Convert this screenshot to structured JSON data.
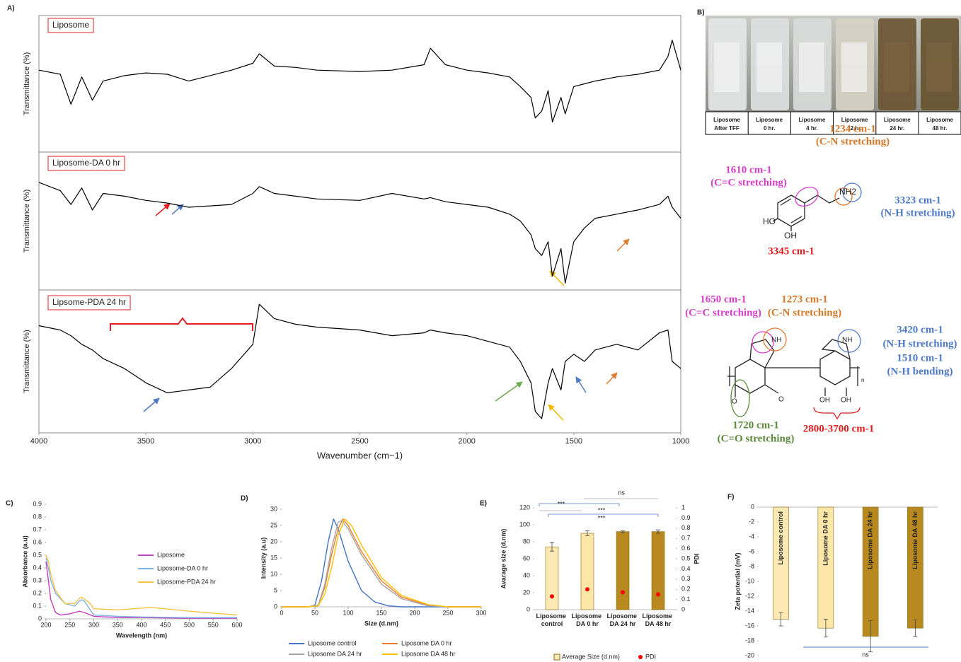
{
  "chart_data": [
    {
      "panel": "A)",
      "type": "line",
      "annotation": "Liposome",
      "ylabel": "Transmittance (%)",
      "xlim": [
        4000,
        1000
      ],
      "ylim": [
        0,
        100
      ],
      "x": [
        4000,
        3900,
        3850,
        3800,
        3750,
        3700,
        3600,
        3500,
        3400,
        3300,
        3200,
        3100,
        3000,
        2970,
        2900,
        2800,
        2700,
        2500,
        2350,
        2200,
        2170,
        2100,
        2000,
        1900,
        1800,
        1750,
        1700,
        1680,
        1650,
        1620,
        1600,
        1560,
        1540,
        1500,
        1450,
        1400,
        1300,
        1200,
        1100,
        1060,
        1040,
        1000
      ],
      "series": [
        {
          "color": "#000000",
          "values": [
            60,
            57,
            35,
            55,
            38,
            52,
            56,
            58,
            57,
            52,
            56,
            60,
            65,
            72,
            63,
            62,
            60,
            59,
            60,
            64,
            76,
            64,
            60,
            58,
            55,
            48,
            40,
            25,
            30,
            45,
            22,
            40,
            28,
            48,
            50,
            52,
            55,
            57,
            60,
            70,
            82,
            60
          ]
        }
      ]
    },
    {
      "type": "line",
      "annotation": "Liposome-DA 0 hr",
      "ylabel": "Transmittance (%)",
      "xlim": [
        4000,
        1000
      ],
      "ylim": [
        0,
        100
      ],
      "x": [
        4000,
        3900,
        3850,
        3800,
        3750,
        3700,
        3600,
        3500,
        3400,
        3300,
        3200,
        3100,
        3000,
        2970,
        2900,
        2800,
        2700,
        2500,
        2350,
        2200,
        2170,
        2100,
        2000,
        1900,
        1800,
        1750,
        1700,
        1680,
        1650,
        1620,
        1600,
        1560,
        1540,
        1500,
        1450,
        1400,
        1300,
        1200,
        1100,
        1060,
        1040,
        1000
      ],
      "series": [
        {
          "color": "#000000",
          "values": [
            78,
            72,
            62,
            74,
            58,
            70,
            68,
            65,
            63,
            60,
            61,
            62,
            70,
            75,
            70,
            68,
            66,
            65,
            70,
            66,
            67,
            64,
            62,
            60,
            55,
            50,
            40,
            30,
            25,
            35,
            10,
            30,
            5,
            35,
            45,
            52,
            55,
            58,
            62,
            68,
            60,
            52
          ]
        }
      ]
    },
    {
      "type": "line",
      "annotation": "Lipsome-PDA 24 hr",
      "ylabel": "Transmittance (%)",
      "xlabel": "Wavenumber (cm−1)",
      "xlim": [
        4000,
        1000
      ],
      "ylim": [
        0,
        100
      ],
      "xticks": [
        4000,
        3500,
        3000,
        2500,
        2000,
        1500,
        1000
      ],
      "x": [
        4000,
        3900,
        3850,
        3800,
        3750,
        3700,
        3600,
        3500,
        3400,
        3300,
        3200,
        3100,
        3000,
        2970,
        2900,
        2800,
        2700,
        2500,
        2350,
        2200,
        2170,
        2100,
        2000,
        1900,
        1800,
        1750,
        1700,
        1680,
        1650,
        1620,
        1600,
        1560,
        1540,
        1500,
        1450,
        1400,
        1300,
        1200,
        1100,
        1060,
        1040,
        1000
      ],
      "series": [
        {
          "color": "#000000",
          "values": [
            75,
            72,
            68,
            62,
            58,
            52,
            45,
            35,
            28,
            30,
            32,
            45,
            62,
            90,
            80,
            76,
            74,
            72,
            68,
            70,
            72,
            70,
            68,
            64,
            60,
            50,
            35,
            15,
            10,
            35,
            45,
            30,
            50,
            55,
            50,
            58,
            62,
            58,
            70,
            72,
            50,
            45
          ]
        }
      ]
    },
    {
      "panel": "C)",
      "type": "line",
      "xlabel": "Wavelength (nm)",
      "ylabel": "Absorbance (a.u)",
      "xlim": [
        200,
        600
      ],
      "xticks": [
        200,
        250,
        300,
        350,
        400,
        450,
        500,
        550,
        600
      ],
      "ylim": [
        0,
        0.9
      ],
      "yticks": [
        0,
        0.1,
        0.2,
        0.3,
        0.4,
        0.5,
        0.6,
        0.7,
        0.8,
        0.9
      ],
      "legend": "right",
      "series": [
        {
          "name": "Liposome",
          "color": "#c040c0",
          "x": [
            200,
            205,
            210,
            220,
            230,
            250,
            270,
            280,
            300,
            350,
            400,
            500,
            600
          ],
          "values": [
            0.45,
            0.3,
            0.15,
            0.05,
            0.03,
            0.04,
            0.06,
            0.05,
            0.02,
            0.01,
            0.01,
            0.005,
            0.005
          ]
        },
        {
          "name": "Liposome-DA  0 hr",
          "color": "#7fb2e5",
          "x": [
            200,
            205,
            210,
            220,
            240,
            260,
            270,
            275,
            280,
            300,
            350,
            400,
            500,
            600
          ],
          "values": [
            0.48,
            0.4,
            0.3,
            0.2,
            0.12,
            0.1,
            0.14,
            0.15,
            0.14,
            0.03,
            0.02,
            0.015,
            0.01,
            0.01
          ]
        },
        {
          "name": "Liposome-PDA 24 hr",
          "color": "#f5c242",
          "x": [
            200,
            205,
            210,
            220,
            240,
            260,
            270,
            275,
            290,
            300,
            350,
            420,
            500,
            600
          ],
          "values": [
            0.5,
            0.45,
            0.35,
            0.22,
            0.12,
            0.12,
            0.16,
            0.17,
            0.13,
            0.08,
            0.07,
            0.09,
            0.06,
            0.03
          ]
        }
      ]
    },
    {
      "panel": "D)",
      "type": "line",
      "xlabel": "Size (d.nm)",
      "ylabel": "Intensity (a.u)",
      "xlim": [
        0,
        300
      ],
      "xticks": [
        0,
        50,
        100,
        150,
        200,
        250,
        300
      ],
      "ylim": [
        0,
        30
      ],
      "yticks": [
        0,
        5,
        10,
        15,
        20,
        25,
        30
      ],
      "legend": "bottom",
      "series": [
        {
          "name": "Liposome control",
          "color": "#4472c4",
          "x": [
            0,
            40,
            50,
            60,
            70,
            78,
            85,
            100,
            120,
            140,
            160,
            180,
            300
          ],
          "values": [
            0,
            0,
            0.5,
            8,
            20,
            27,
            24,
            14,
            5,
            1.5,
            0.3,
            0,
            0
          ]
        },
        {
          "name": "Liposome DA  0  hr",
          "color": "#ed7d31",
          "x": [
            0,
            40,
            55,
            65,
            75,
            85,
            92,
            100,
            120,
            150,
            180,
            220,
            250,
            300
          ],
          "values": [
            0,
            0,
            0.5,
            6,
            16,
            24,
            27,
            25,
            17,
            8,
            3,
            0.5,
            0,
            0
          ]
        },
        {
          "name": "Liposome DA 24  hr",
          "color": "#a5a5a5",
          "x": [
            0,
            40,
            55,
            65,
            75,
            85,
            90,
            100,
            120,
            150,
            180,
            220,
            250,
            300
          ],
          "values": [
            0,
            0,
            0.5,
            7,
            18,
            26,
            26.5,
            24,
            16,
            7,
            2.5,
            0.3,
            0,
            0
          ]
        },
        {
          "name": "Liposome DA 48  hr",
          "color": "#ffc000",
          "x": [
            0,
            40,
            55,
            65,
            75,
            85,
            95,
            105,
            120,
            150,
            180,
            220,
            250,
            300
          ],
          "values": [
            0,
            0,
            0.3,
            4,
            12,
            22,
            27,
            25,
            19,
            9,
            3.5,
            0.7,
            0,
            0
          ]
        }
      ]
    },
    {
      "panel": "E)",
      "type": "bar",
      "ylabel": "Avarage size (d.nm)",
      "y2label": "PDI",
      "legend": "bottom",
      "categories": [
        "Liposome control",
        "Liposome DA 0  hr",
        "Liposome DA 24  hr",
        "Liposome DA 48  hr"
      ],
      "ylim": [
        0,
        120
      ],
      "yticks": [
        0,
        20,
        40,
        60,
        80,
        100,
        120
      ],
      "y2lim": [
        0,
        1
      ],
      "y2ticks": [
        0,
        0.1,
        0.2,
        0.3,
        0.4,
        0.5,
        0.6,
        0.7,
        0.8,
        0.9,
        1
      ],
      "annotations": [
        "***",
        "***",
        "***",
        "ns"
      ],
      "series": [
        {
          "name": "Average Size (d.nm)",
          "type": "bar",
          "colors": [
            "#fde9b3",
            "#fde7a8",
            "#b8891e",
            "#b8891e"
          ],
          "values": [
            74,
            90,
            92,
            92
          ],
          "errors": [
            5,
            3,
            1,
            2
          ]
        },
        {
          "name": "PDI",
          "type": "scatter",
          "axis": "y2",
          "color": "#ff0000",
          "values": [
            0.13,
            0.2,
            0.17,
            0.15
          ]
        }
      ]
    },
    {
      "panel": "F)",
      "type": "bar",
      "ylabel": "Zeta potential  (mV)",
      "categories": [
        "Liposome control",
        "Liposome DA 0  hr",
        "Liposome DA 24  hr",
        "Liposome DA 48  hr"
      ],
      "ylim": [
        -20,
        0
      ],
      "yticks": [
        0,
        -2,
        -4,
        -6,
        -8,
        -10,
        -12,
        -14,
        -16,
        -18,
        -20
      ],
      "annotations": [
        "ns"
      ],
      "series": [
        {
          "colors": [
            "#fde9b3",
            "#fde7a8",
            "#b8891e",
            "#b8891e"
          ],
          "values": [
            -15.1,
            -16.3,
            -17.4,
            -16.3
          ],
          "errors": [
            0.9,
            1.2,
            2.1,
            1.1
          ]
        }
      ]
    }
  ],
  "panel_b": {
    "label": "B)",
    "vials": [
      [
        "Liposome",
        "After TFF"
      ],
      [
        "Liposome",
        "0 hr."
      ],
      [
        "Liposome",
        "4 hr."
      ],
      [
        "Liposome",
        "12 hr."
      ],
      [
        "Liposome",
        "24 hr."
      ],
      [
        "Liposome",
        "48 hr."
      ]
    ],
    "dopamine": {
      "atoms": [
        "HO",
        "OH",
        "NH2"
      ],
      "annotations": [
        [
          "1234 cm-1",
          "(C-N stretching)"
        ],
        [
          "1610 cm-1",
          "(C=C stretching)"
        ],
        [
          "3323 cm-1",
          "(N-H stretching)"
        ],
        [
          "3345 cm-1"
        ]
      ]
    },
    "polydopamine": {
      "atoms": [
        "NH",
        "NH",
        "O",
        "O",
        "OH",
        "OH",
        "n"
      ],
      "annotations": [
        [
          "1650 cm-1",
          "(C=C stretching)"
        ],
        [
          "1273 cm-1",
          "(C-N stretching)"
        ],
        [
          "3420 cm-1",
          "(N-H stretching)",
          "1510 cm-1",
          "(N-H bending)"
        ],
        [
          "1720 cm-1",
          "(C=O stretching)"
        ],
        [
          "2800-3700 cm-1"
        ]
      ]
    }
  }
}
